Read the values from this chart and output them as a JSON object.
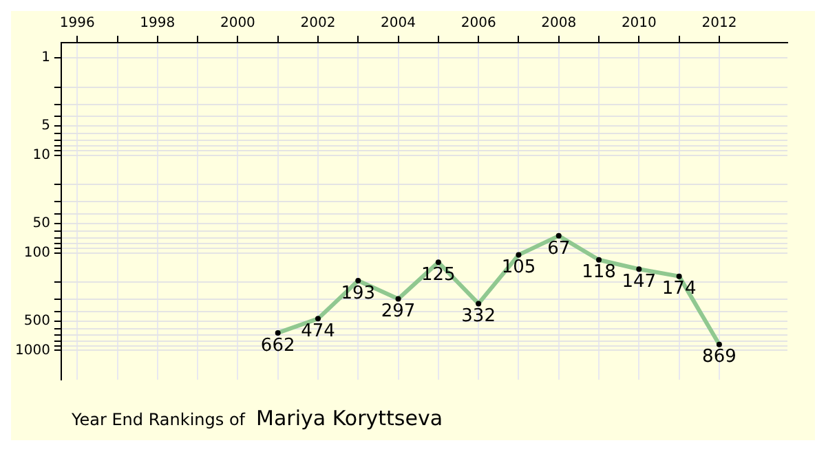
{
  "chart_data": {
    "type": "line",
    "title": "Year End Rankings of",
    "subtitle": "Mariya Koryttseva",
    "x": [
      2001,
      2002,
      2003,
      2004,
      2005,
      2006,
      2007,
      2008,
      2009,
      2010,
      2011,
      2012
    ],
    "series": [
      {
        "color": "#90c890",
        "values": [
          662,
          474,
          193,
          297,
          125,
          332,
          105,
          67,
          118,
          147,
          174,
          869
        ]
      }
    ],
    "xlim": [
      1995.6,
      2013.7
    ],
    "xticks": [
      1996,
      {
        "value": 1997,
        "label": null
      },
      1998,
      {
        "value": 1999,
        "label": null
      },
      2000,
      {
        "value": 2001,
        "label": null
      },
      2002,
      {
        "value": 2003,
        "label": null
      },
      2004,
      {
        "value": 2005,
        "label": null
      },
      2006,
      {
        "value": 2007,
        "label": null
      },
      2008,
      {
        "value": 2009,
        "label": null
      },
      2010,
      {
        "value": 2011,
        "label": null
      },
      2012
    ],
    "ylim": [
      2000,
      0.74
    ],
    "yticks": [
      1,
      {
        "value": 2,
        "label": null
      },
      {
        "value": 3,
        "label": null
      },
      {
        "value": 4,
        "label": null
      },
      5,
      {
        "value": 6,
        "label": null
      },
      {
        "value": 7,
        "label": null
      },
      {
        "value": 8,
        "label": null
      },
      {
        "value": 9,
        "label": null
      },
      10,
      {
        "value": 20,
        "label": null
      },
      {
        "value": 30,
        "label": null
      },
      {
        "value": 40,
        "label": null
      },
      50,
      {
        "value": 60,
        "label": null
      },
      {
        "value": 70,
        "label": null
      },
      {
        "value": 80,
        "label": null
      },
      {
        "value": 90,
        "label": null
      },
      100,
      {
        "value": 200,
        "label": null
      },
      {
        "value": 300,
        "label": null
      },
      {
        "value": 400,
        "label": null
      },
      500,
      {
        "value": 600,
        "label": null
      },
      {
        "value": 700,
        "label": null
      },
      {
        "value": 800,
        "label": null
      },
      {
        "value": 900,
        "label": null
      },
      1000
    ],
    "log": "y",
    "grid": true,
    "marker": "circle",
    "line_style": "solid",
    "data_labels": true
  }
}
